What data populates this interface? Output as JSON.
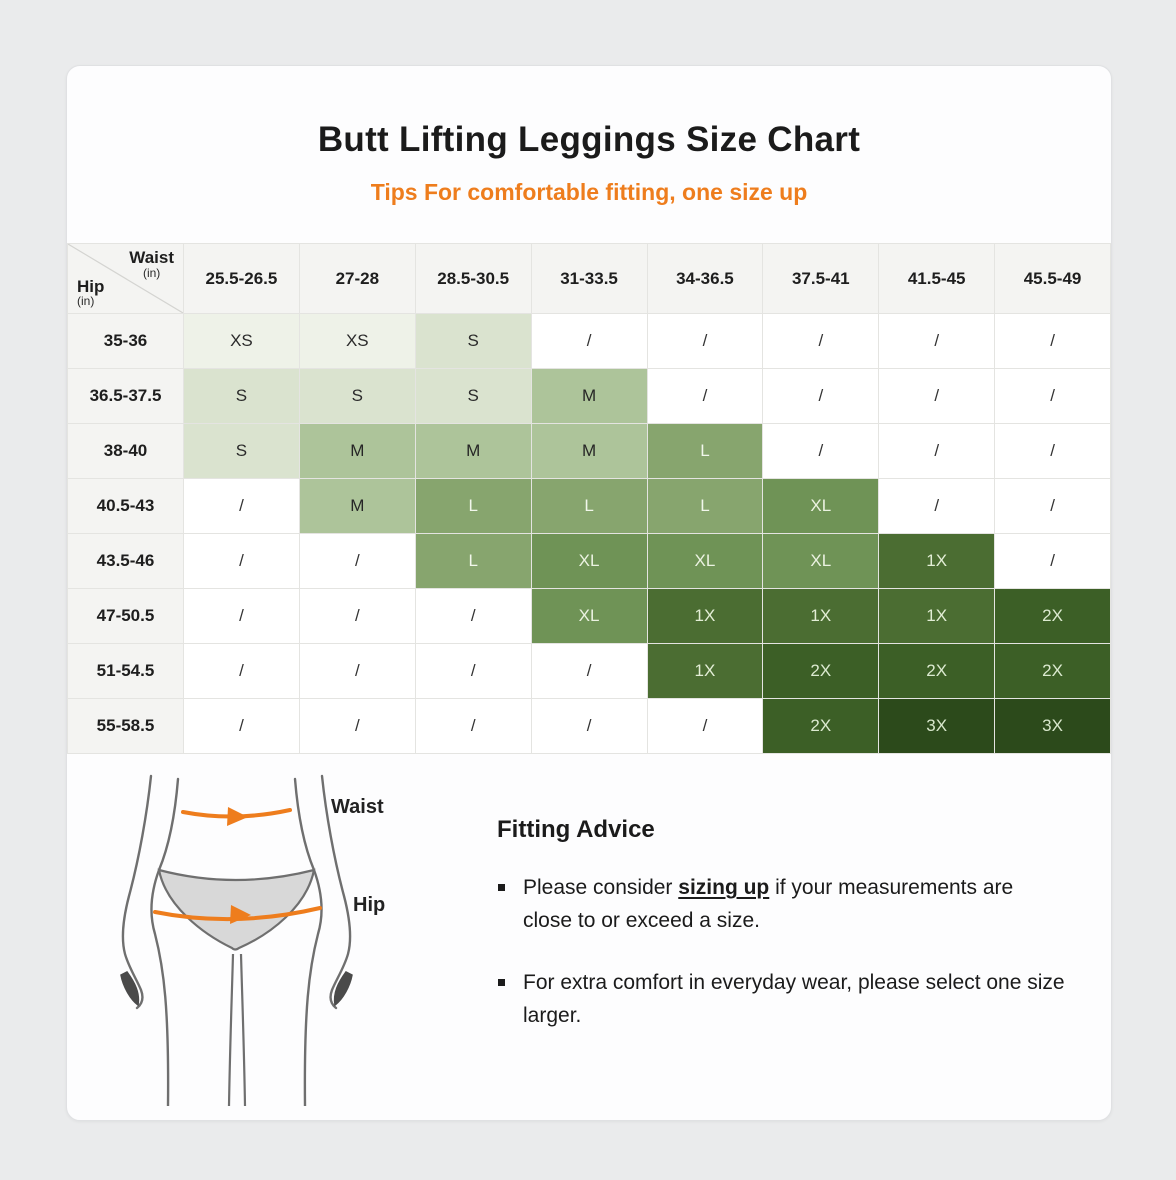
{
  "page": {
    "background": "#eaebec",
    "card_background": "#fdfdfe"
  },
  "header": {
    "title": "Butt Lifting Leggings Size Chart",
    "subtitle": "Tips For comfortable fitting, one size up",
    "accent_color": "#ee7d1d"
  },
  "chart_data": {
    "type": "table",
    "title": "Butt Lifting Leggings Size Chart",
    "corner": {
      "column_axis": "Waist",
      "column_unit": "(in)",
      "row_axis": "Hip",
      "row_unit": "(in)"
    },
    "waist_columns": [
      "25.5-26.5",
      "27-28",
      "28.5-30.5",
      "31-33.5",
      "34-36.5",
      "37.5-41",
      "41.5-45",
      "45.5-49"
    ],
    "hip_rows": [
      "35-36",
      "36.5-37.5",
      "38-40",
      "40.5-43",
      "43.5-46",
      "47-50.5",
      "51-54.5",
      "55-58.5"
    ],
    "cells": [
      [
        "XS",
        "XS",
        "S",
        "/",
        "/",
        "/",
        "/",
        "/"
      ],
      [
        "S",
        "S",
        "S",
        "M",
        "/",
        "/",
        "/",
        "/"
      ],
      [
        "S",
        "M",
        "M",
        "M",
        "L",
        "/",
        "/",
        "/"
      ],
      [
        "/",
        "M",
        "L",
        "L",
        "L",
        "XL",
        "/",
        "/"
      ],
      [
        "/",
        "/",
        "L",
        "XL",
        "XL",
        "XL",
        "1X",
        "/"
      ],
      [
        "/",
        "/",
        "/",
        "XL",
        "1X",
        "1X",
        "1X",
        "2X"
      ],
      [
        "/",
        "/",
        "/",
        "/",
        "1X",
        "2X",
        "2X",
        "2X"
      ],
      [
        "/",
        "/",
        "/",
        "/",
        "/",
        "2X",
        "3X",
        "3X"
      ]
    ],
    "size_colors": {
      "XS": {
        "bg": "#eef2e8",
        "fg": "#2b2b2b"
      },
      "S": {
        "bg": "#dae3cf",
        "fg": "#2b2b2b"
      },
      "M": {
        "bg": "#adc49a",
        "fg": "#262626"
      },
      "L": {
        "bg": "#87a56e",
        "fg": "#f2f7ec"
      },
      "XL": {
        "bg": "#6f9356",
        "fg": "#ebf2e1"
      },
      "1X": {
        "bg": "#4b6d32",
        "fg": "#e3eed6"
      },
      "2X": {
        "bg": "#3c5f26",
        "fg": "#dcead0"
      },
      "3X": {
        "bg": "#2c4a1b",
        "fg": "#d8e7cc"
      },
      "/": {
        "bg": "#ffffff",
        "fg": "#333333"
      }
    },
    "header_bg": "#f4f4f2",
    "grid_color": "#e4e4e1"
  },
  "figure": {
    "waist_label": "Waist",
    "hip_label": "Hip",
    "arrow_color": "#ee7d1d",
    "outline_color": "#6f6f6f"
  },
  "advice": {
    "heading": "Fitting Advice",
    "bullets": [
      {
        "pre": "Please consider ",
        "emphasis": "sizing up",
        "post": " if your measurements are close to or exceed a size."
      },
      {
        "text": "For extra comfort in everyday wear, please select one size larger."
      }
    ]
  }
}
